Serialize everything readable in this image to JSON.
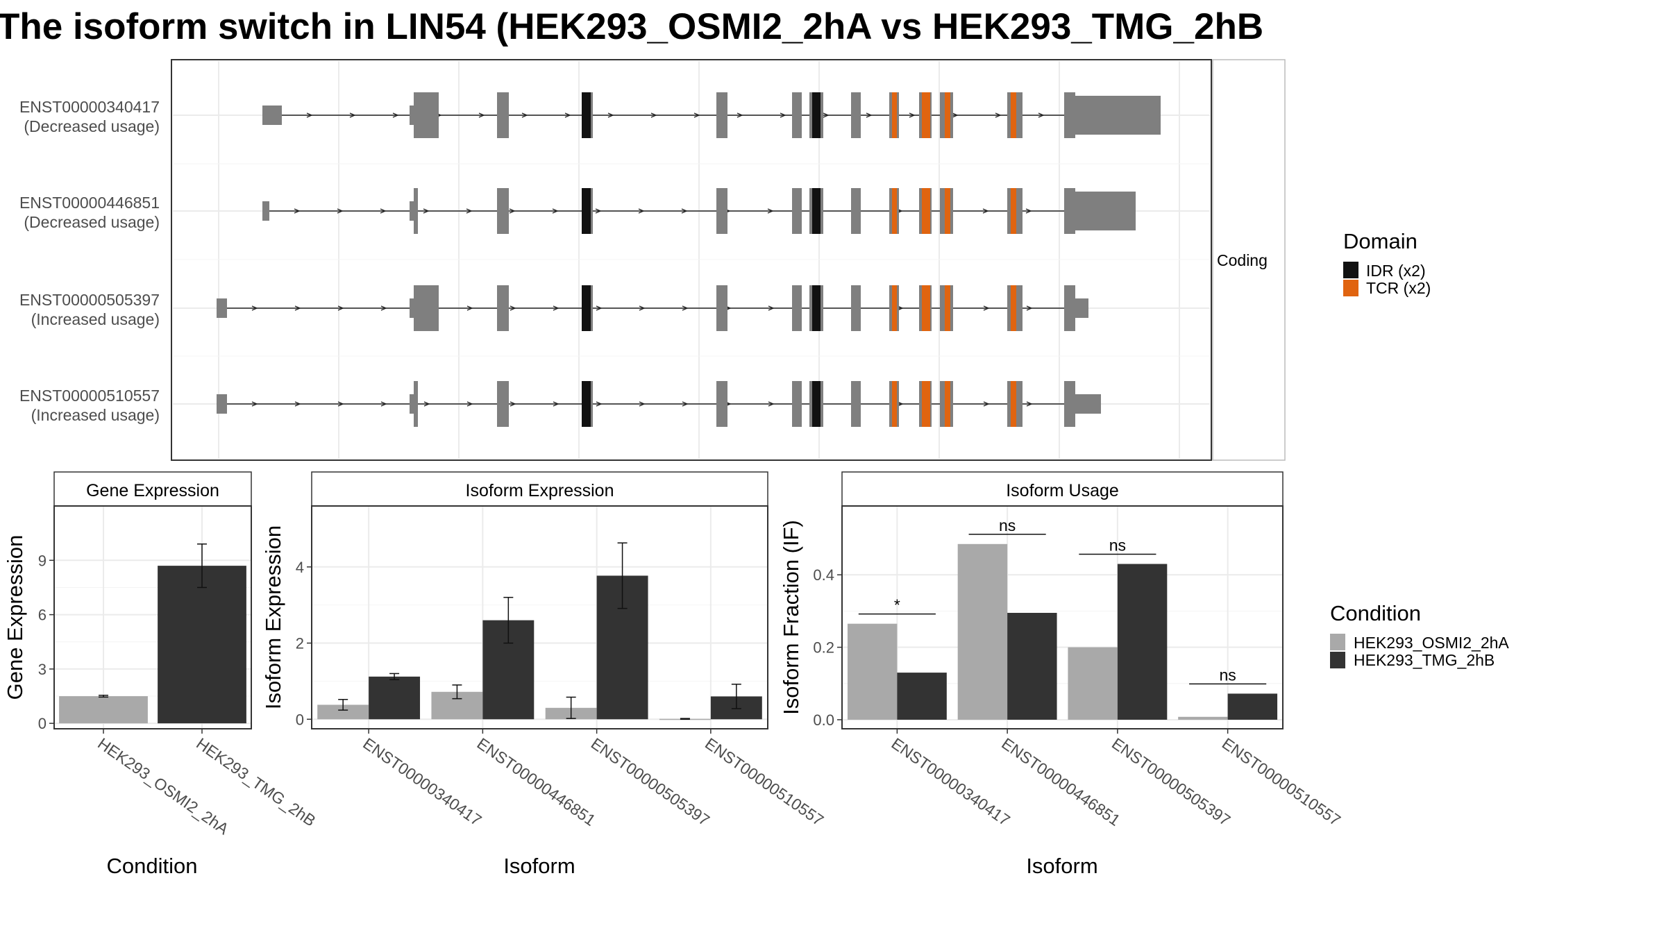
{
  "title": "The isoform switch in LIN54 (HEK293_OSMI2_2hA vs HEK293_TMG_2hB",
  "structure": {
    "facet_label": "Coding",
    "isoforms": [
      {
        "id": "ENST00000340417",
        "usage": "(Decreased usage)"
      },
      {
        "id": "ENST00000446851",
        "usage": "(Decreased usage)"
      },
      {
        "id": "ENST00000505397",
        "usage": "(Increased usage)"
      },
      {
        "id": "ENST00000510557",
        "usage": "(Increased usage)"
      }
    ]
  },
  "domain_legend": {
    "title": "Domain",
    "items": [
      {
        "label": "IDR (x2)",
        "color": "#111111"
      },
      {
        "label": "TCR (x2)",
        "color": "#e06410"
      }
    ]
  },
  "condition_legend": {
    "title": "Condition",
    "items": [
      {
        "label": "HEK293_OSMI2_2hA",
        "color": "#a9a9a9"
      },
      {
        "label": "HEK293_TMG_2hB",
        "color": "#333333"
      }
    ]
  },
  "chart_data": [
    {
      "type": "bar",
      "title": "Gene Expression",
      "xlabel": "Condition",
      "ylabel": "Gene Expression",
      "categories": [
        "HEK293_OSMI2_2hA",
        "HEK293_TMG_2hB"
      ],
      "values": [
        1.5,
        8.7
      ],
      "err": [
        0.05,
        1.2
      ],
      "ylim": [
        -0.3,
        12
      ],
      "yticks": [
        "0",
        "3",
        "6",
        "9"
      ],
      "grid": true
    },
    {
      "type": "bar",
      "title": "Isoform Expression",
      "xlabel": "Isoform",
      "ylabel": "Isoform Expression",
      "categories": [
        "ENST00000340417",
        "ENST00000446851",
        "ENST00000505397",
        "ENST00000510557"
      ],
      "series": [
        {
          "name": "HEK293_OSMI2_2hA",
          "values": [
            0.38,
            0.72,
            0.3,
            0.01
          ],
          "err": [
            0.14,
            0.18,
            0.28,
            0.01
          ]
        },
        {
          "name": "HEK293_TMG_2hB",
          "values": [
            1.12,
            2.6,
            3.77,
            0.6
          ],
          "err": [
            0.08,
            0.6,
            0.86,
            0.32
          ]
        }
      ],
      "ylim": [
        -0.25,
        5.6
      ],
      "yticks": [
        "0",
        "2",
        "4"
      ],
      "grid": true
    },
    {
      "type": "bar",
      "title": "Isoform Usage",
      "xlabel": "Isoform",
      "ylabel": "Isoform Fraction (IF)",
      "categories": [
        "ENST00000340417",
        "ENST00000446851",
        "ENST00000505397",
        "ENST00000510557"
      ],
      "series": [
        {
          "name": "HEK293_OSMI2_2hA",
          "values": [
            0.265,
            0.485,
            0.2,
            0.008
          ]
        },
        {
          "name": "HEK293_TMG_2hB",
          "values": [
            0.13,
            0.295,
            0.43,
            0.072
          ]
        }
      ],
      "significance": [
        "*",
        "ns",
        "ns",
        "ns"
      ],
      "ylim": [
        -0.025,
        0.59
      ],
      "yticks": [
        "0.0",
        "0.2",
        "0.4"
      ],
      "grid": true
    }
  ]
}
